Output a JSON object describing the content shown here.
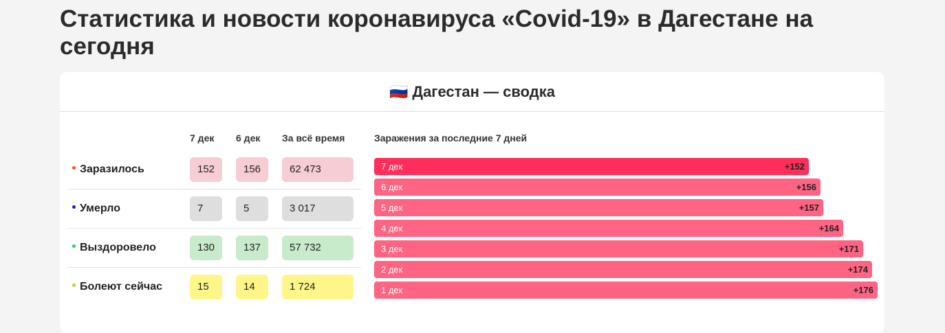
{
  "page": {
    "title": "Статистика и новости коронавируса «Covid-19» в Дагестане на сегодня"
  },
  "card": {
    "flag": "🇷🇺",
    "title": "Дагестан — сводка"
  },
  "table": {
    "columns": [
      "7 дек",
      "6 дек",
      "За всё время"
    ],
    "rows": [
      {
        "label": "Заразилось",
        "dot_color": "#ff4a1c",
        "pill_color": "#f5cdd3",
        "values": [
          "152",
          "156",
          "62 473"
        ]
      },
      {
        "label": "Умерло",
        "dot_color": "#1a1adb",
        "pill_color": "#dedede",
        "values": [
          "7",
          "5",
          "3 017"
        ]
      },
      {
        "label": "Выздоровело",
        "dot_color": "#33cc55",
        "pill_color": "#c8ebcc",
        "values": [
          "130",
          "137",
          "57 732"
        ]
      },
      {
        "label": "Болеют сейчас",
        "dot_color": "#c9c93a",
        "pill_color": "#fff68a",
        "values": [
          "15",
          "14",
          "1 724"
        ]
      }
    ]
  },
  "chart_data": {
    "type": "bar",
    "title": "Заражения за последние 7 дней",
    "categories": [
      "7 дек",
      "6 дек",
      "5 дек",
      "4 дек",
      "3 дек",
      "2 дек",
      "1 дек"
    ],
    "values": [
      152,
      156,
      157,
      164,
      171,
      174,
      176
    ],
    "value_labels": [
      "+152",
      "+156",
      "+157",
      "+164",
      "+171",
      "+174",
      "+176"
    ],
    "colors": {
      "latest": "#ff2d5a",
      "other": "#ff6482"
    }
  }
}
